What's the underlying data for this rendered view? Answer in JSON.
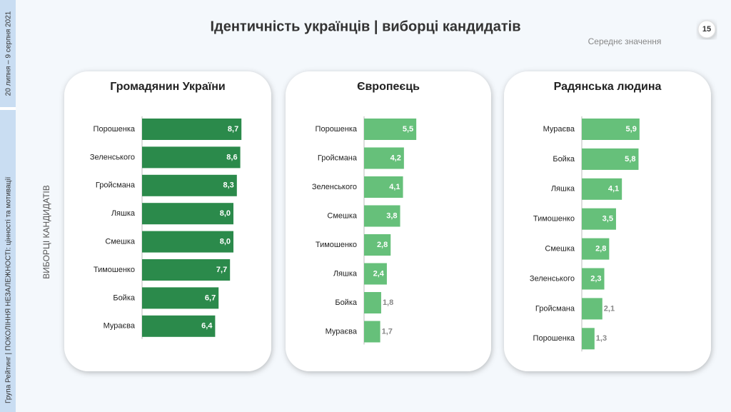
{
  "header": {
    "title": "Ідентичність українців | виборці кандидатів",
    "subtitle": "Середнє значення",
    "page_number": "15",
    "date": "20 липня – 9 серпня 2021",
    "footer": "Група Рейтинг | ПОКОЛІННЯ НЕЗАЛЕЖНОСТІ: цінності та мотивації",
    "axis_label": "ВИБОРЦІ КАНДИДАТІВ"
  },
  "chart_data": [
    {
      "type": "bar",
      "title": "Громадянин України",
      "color": "#2b8a4b",
      "categories": [
        "Порошенка",
        "Зеленського",
        "Гройсмана",
        "Ляшка",
        "Смешка",
        "Тимошенко",
        "Бойка",
        "Мураєва"
      ],
      "values": [
        8.7,
        8.6,
        8.3,
        8.0,
        8.0,
        7.7,
        6.7,
        6.4
      ],
      "value_labels": [
        "8,7",
        "8,6",
        "8,3",
        "8,0",
        "8,0",
        "7,7",
        "6,7",
        "6,4"
      ]
    },
    {
      "type": "bar",
      "title": "Європеєць",
      "color": "#66c07a",
      "categories": [
        "Порошенка",
        "Гройсмана",
        "Зеленського",
        "Смешка",
        "Тимошенко",
        "Ляшка",
        "Бойка",
        "Мураєва"
      ],
      "values": [
        5.5,
        4.2,
        4.1,
        3.8,
        2.8,
        2.4,
        1.8,
        1.7
      ],
      "value_labels": [
        "5,5",
        "4,2",
        "4,1",
        "3,8",
        "2,8",
        "2,4",
        "1,8",
        "1,7"
      ]
    },
    {
      "type": "bar",
      "title": "Радянська людина",
      "color": "#66c07a",
      "categories": [
        "Мураєва",
        "Бойка",
        "Ляшка",
        "Тимошенко",
        "Смешка",
        "Зеленського",
        "Гройсмана",
        "Порошенка"
      ],
      "values": [
        5.9,
        5.8,
        4.1,
        3.5,
        2.8,
        2.3,
        2.1,
        1.3
      ],
      "value_labels": [
        "5,9",
        "5,8",
        "4,1",
        "3,5",
        "2,8",
        "2,3",
        "2,1",
        "1,3"
      ]
    }
  ]
}
